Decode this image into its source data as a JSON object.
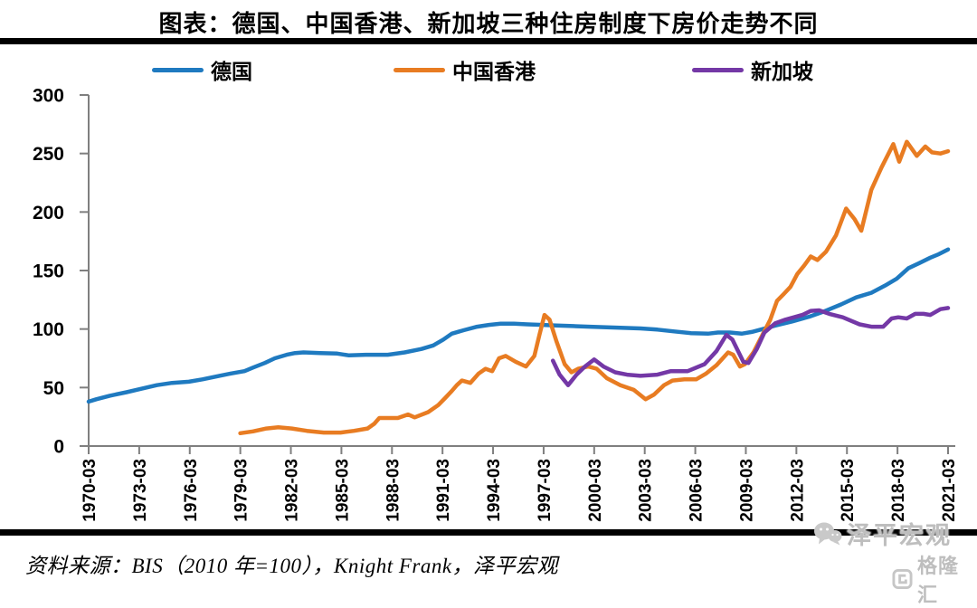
{
  "title": "图表：德国、中国香港、新加坡三种住房制度下房价走势不同",
  "legend": {
    "items": [
      {
        "id": "germany",
        "label": "德国",
        "color": "#1F7AC0"
      },
      {
        "id": "hongkong",
        "label": "中国香港",
        "color": "#E87C22"
      },
      {
        "id": "singapore",
        "label": "新加坡",
        "color": "#7438A6"
      }
    ]
  },
  "source_note": "资料来源：BIS（2010 年=100），Knight Frank，泽平宏观",
  "watermark": {
    "wechat_name": "泽平宏观",
    "logo_text": "格隆汇",
    "color": "#BEBEBE"
  },
  "chart_data": {
    "type": "line",
    "title": "图表：德国、中国香港、新加坡三种住房制度下房价走势不同",
    "xlabel": "",
    "ylabel": "",
    "ylim": [
      0,
      300
    ],
    "yticks": [
      0,
      50,
      100,
      150,
      200,
      250,
      300
    ],
    "xtick_labels": [
      "1970-03",
      "1973-03",
      "1976-03",
      "1979-03",
      "1982-03",
      "1985-03",
      "1988-03",
      "1991-03",
      "1994-03",
      "1997-03",
      "2000-03",
      "2003-03",
      "2006-03",
      "2009-03",
      "2012-03",
      "2015-03",
      "2018-03",
      "2021-03"
    ],
    "x_start_year": 1970.25,
    "x_end_year": 2021.25,
    "grid": false,
    "legend_position": "top",
    "axis_color": "#7F7F7F",
    "series": [
      {
        "id": "germany",
        "name": "德国",
        "color": "#1F7AC0",
        "points": [
          [
            1970.25,
            38
          ],
          [
            1970.7,
            40
          ],
          [
            1971.5,
            43
          ],
          [
            1972.5,
            46
          ],
          [
            1973.4,
            49
          ],
          [
            1974.3,
            52
          ],
          [
            1975.2,
            54
          ],
          [
            1976.2,
            55
          ],
          [
            1977,
            57
          ],
          [
            1978,
            60
          ],
          [
            1978.7,
            62
          ],
          [
            1979.5,
            64
          ],
          [
            1980,
            67
          ],
          [
            1980.7,
            71
          ],
          [
            1981.3,
            75
          ],
          [
            1982,
            78
          ],
          [
            1982.5,
            79.5
          ],
          [
            1983,
            80
          ],
          [
            1984,
            79.5
          ],
          [
            1985,
            79
          ],
          [
            1985.7,
            77.5
          ],
          [
            1986.7,
            78
          ],
          [
            1988,
            78
          ],
          [
            1989,
            80
          ],
          [
            1990,
            83
          ],
          [
            1990.7,
            86
          ],
          [
            1991.3,
            91
          ],
          [
            1991.8,
            96
          ],
          [
            1992.5,
            99
          ],
          [
            1993.3,
            102
          ],
          [
            1994,
            103.5
          ],
          [
            1994.7,
            104.5
          ],
          [
            1995.5,
            104.5
          ],
          [
            1996.3,
            104
          ],
          [
            1997.2,
            103.5
          ],
          [
            1998,
            103
          ],
          [
            1999,
            102.5
          ],
          [
            2000,
            102
          ],
          [
            2001,
            101.5
          ],
          [
            2002,
            101
          ],
          [
            2003,
            100.5
          ],
          [
            2004,
            99.5
          ],
          [
            2005,
            98
          ],
          [
            2006,
            96.5
          ],
          [
            2007,
            96
          ],
          [
            2007.6,
            97
          ],
          [
            2008.3,
            97
          ],
          [
            2009,
            96
          ],
          [
            2009.6,
            97.5
          ],
          [
            2010.25,
            100
          ],
          [
            2011,
            103
          ],
          [
            2012,
            106.5
          ],
          [
            2013,
            110.5
          ],
          [
            2013.8,
            114.5
          ],
          [
            2014.9,
            121
          ],
          [
            2015.8,
            127
          ],
          [
            2016.7,
            131
          ],
          [
            2017.5,
            137
          ],
          [
            2018.2,
            143
          ],
          [
            2018.9,
            152
          ],
          [
            2019.5,
            156
          ],
          [
            2020.2,
            161
          ],
          [
            2020.7,
            164
          ],
          [
            2021.25,
            168
          ]
        ]
      },
      {
        "id": "hongkong",
        "name": "中国香港",
        "color": "#E87C22",
        "points": [
          [
            1979.25,
            11
          ],
          [
            1980,
            12.5
          ],
          [
            1980.8,
            15
          ],
          [
            1981.5,
            16
          ],
          [
            1982.3,
            15
          ],
          [
            1983.2,
            13
          ],
          [
            1984.2,
            11.5
          ],
          [
            1985.2,
            11.5
          ],
          [
            1986,
            13
          ],
          [
            1986.8,
            15
          ],
          [
            1987.2,
            19
          ],
          [
            1987.5,
            24
          ],
          [
            1988,
            24
          ],
          [
            1988.6,
            24
          ],
          [
            1989.2,
            27
          ],
          [
            1989.6,
            24.5
          ],
          [
            1990.4,
            29
          ],
          [
            1991,
            35
          ],
          [
            1991.4,
            41
          ],
          [
            1991.8,
            47
          ],
          [
            1992.1,
            52
          ],
          [
            1992.4,
            56
          ],
          [
            1992.9,
            54
          ],
          [
            1993.4,
            62
          ],
          [
            1993.8,
            66
          ],
          [
            1994.2,
            64
          ],
          [
            1994.6,
            75
          ],
          [
            1995,
            77
          ],
          [
            1995.6,
            72
          ],
          [
            1996.2,
            68
          ],
          [
            1996.7,
            77
          ],
          [
            1997,
            95
          ],
          [
            1997.3,
            112
          ],
          [
            1997.6,
            108
          ],
          [
            1998,
            90
          ],
          [
            1998.5,
            70
          ],
          [
            1998.9,
            63
          ],
          [
            1999.3,
            66
          ],
          [
            1999.9,
            68
          ],
          [
            2000.4,
            66
          ],
          [
            2001,
            58
          ],
          [
            2001.8,
            52
          ],
          [
            2002.6,
            48
          ],
          [
            2003.3,
            40
          ],
          [
            2003.8,
            44
          ],
          [
            2004.4,
            52
          ],
          [
            2004.9,
            56
          ],
          [
            2005.6,
            57
          ],
          [
            2006.3,
            57
          ],
          [
            2006.9,
            62
          ],
          [
            2007.5,
            69
          ],
          [
            2008.2,
            80
          ],
          [
            2008.5,
            78
          ],
          [
            2008.9,
            68
          ],
          [
            2009.2,
            70
          ],
          [
            2009.7,
            80
          ],
          [
            2010.2,
            94
          ],
          [
            2010.7,
            108
          ],
          [
            2011.1,
            124
          ],
          [
            2011.5,
            130
          ],
          [
            2011.9,
            136
          ],
          [
            2012.3,
            147
          ],
          [
            2012.7,
            154
          ],
          [
            2013.1,
            162
          ],
          [
            2013.5,
            159
          ],
          [
            2014,
            166
          ],
          [
            2014.6,
            180
          ],
          [
            2015.2,
            203
          ],
          [
            2015.7,
            194
          ],
          [
            2016.1,
            184
          ],
          [
            2016.7,
            219
          ],
          [
            2017.3,
            238
          ],
          [
            2018,
            258
          ],
          [
            2018.35,
            243
          ],
          [
            2018.8,
            260
          ],
          [
            2019.4,
            248
          ],
          [
            2019.9,
            256
          ],
          [
            2020.3,
            251
          ],
          [
            2020.8,
            250
          ],
          [
            2021.25,
            252
          ]
        ]
      },
      {
        "id": "singapore",
        "name": "新加坡",
        "color": "#7438A6",
        "points": [
          [
            1997.8,
            73
          ],
          [
            1998.2,
            61
          ],
          [
            1998.7,
            52
          ],
          [
            1999.2,
            61
          ],
          [
            1999.7,
            68
          ],
          [
            2000.25,
            74
          ],
          [
            2000.8,
            68
          ],
          [
            2001.5,
            63
          ],
          [
            2002.2,
            61
          ],
          [
            2003,
            60
          ],
          [
            2004,
            61
          ],
          [
            2004.8,
            64
          ],
          [
            2005.8,
            64
          ],
          [
            2006.8,
            70
          ],
          [
            2007.5,
            81
          ],
          [
            2008.1,
            95
          ],
          [
            2008.45,
            91
          ],
          [
            2009.1,
            72
          ],
          [
            2009.4,
            71
          ],
          [
            2009.9,
            83
          ],
          [
            2010.35,
            97
          ],
          [
            2011,
            105
          ],
          [
            2011.6,
            108
          ],
          [
            2012.1,
            110
          ],
          [
            2012.6,
            112
          ],
          [
            2013.1,
            115.5
          ],
          [
            2013.6,
            116
          ],
          [
            2014.2,
            113
          ],
          [
            2015,
            110
          ],
          [
            2016,
            104
          ],
          [
            2016.7,
            102
          ],
          [
            2017.4,
            102
          ],
          [
            2017.9,
            109
          ],
          [
            2018.3,
            110
          ],
          [
            2018.8,
            109
          ],
          [
            2019.3,
            113
          ],
          [
            2019.8,
            113
          ],
          [
            2020.2,
            112
          ],
          [
            2020.8,
            117
          ],
          [
            2021.25,
            118
          ]
        ]
      }
    ]
  }
}
